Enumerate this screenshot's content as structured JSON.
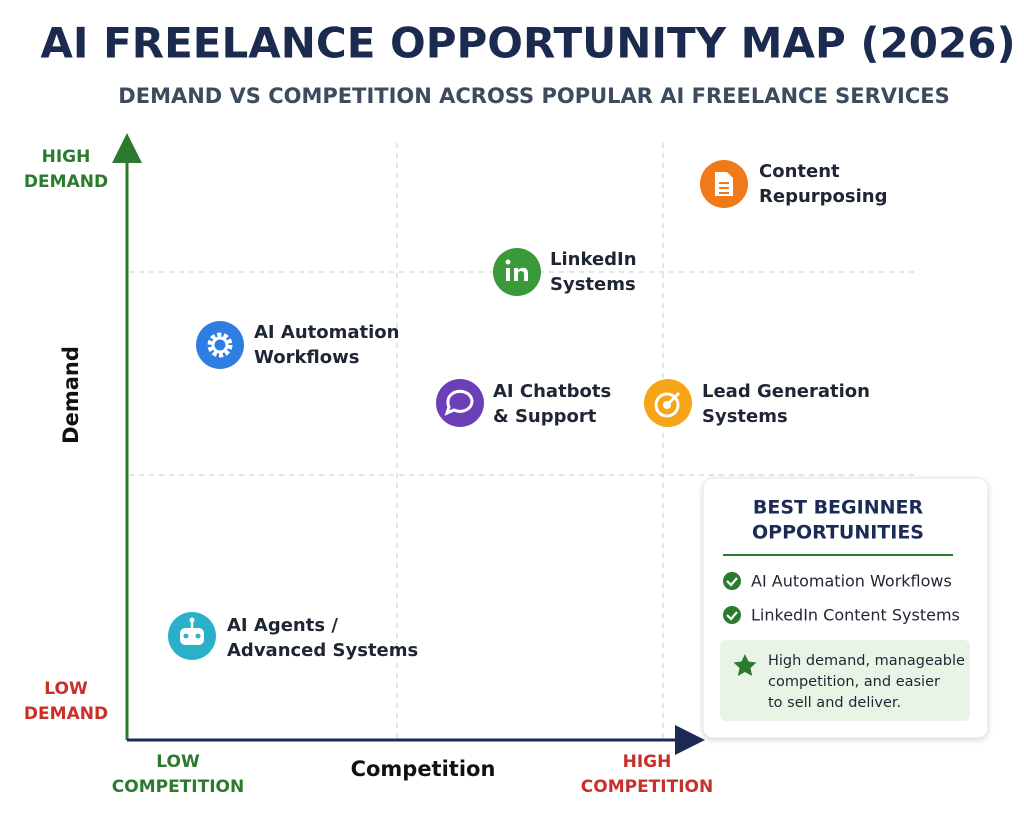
{
  "header": {
    "title": "AI FREELANCE OPPORTUNITY MAP (2026)",
    "subtitle": "DEMAND VS COMPETITION ACROSS POPULAR AI FREELANCE SERVICES"
  },
  "axes": {
    "y_title": "Demand",
    "y_high": [
      "HIGH",
      "DEMAND"
    ],
    "y_low": [
      "LOW",
      "DEMAND"
    ],
    "x_title": "Competition",
    "x_low": [
      "LOW",
      "COMPETITION"
    ],
    "x_high": [
      "HIGH",
      "COMPETITION"
    ]
  },
  "services": [
    [
      "Content",
      "Repurposing"
    ],
    [
      "LinkedIn",
      "Systems"
    ],
    [
      "AI Automation",
      "Workflows"
    ],
    [
      "AI Chatbots",
      "& Support"
    ],
    [
      "Lead Generation",
      "Systems"
    ],
    [
      "AI Agents /",
      "Advanced Systems"
    ]
  ],
  "callout": {
    "title": [
      "BEST BEGINNER",
      "OPPORTUNITIES"
    ],
    "items": [
      "AI Automation Workflows",
      "LinkedIn Content Systems"
    ],
    "note": [
      "High demand, manageable",
      "competition, and easier",
      "to sell and deliver."
    ]
  }
}
